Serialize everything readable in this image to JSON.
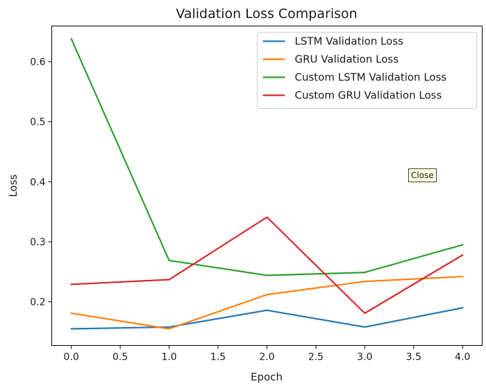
{
  "chart_data": {
    "type": "line",
    "title": "Validation Loss Comparison",
    "xlabel": "Epoch",
    "ylabel": "Loss",
    "x": [
      0,
      1,
      2,
      3,
      4
    ],
    "xlim": [
      -0.2,
      4.2
    ],
    "ylim": [
      0.1273,
      0.6595
    ],
    "x_ticks": [
      "0.0",
      "0.5",
      "1.0",
      "1.5",
      "2.0",
      "2.5",
      "3.0",
      "3.5",
      "4.0"
    ],
    "y_ticks": [
      "0.2",
      "0.3",
      "0.4",
      "0.5",
      "0.6"
    ],
    "grid": false,
    "legend_position": "upper-right",
    "series": [
      {
        "name": "LSTM Validation Loss",
        "color": "#1f77b4",
        "values": [
          0.155,
          0.158,
          0.186,
          0.158,
          0.19
        ]
      },
      {
        "name": "GRU Validation Loss",
        "color": "#ff7f0e",
        "values": [
          0.181,
          0.155,
          0.212,
          0.234,
          0.242
        ]
      },
      {
        "name": "Custom LSTM Validation Loss",
        "color": "#2ca02c",
        "values": [
          0.638,
          0.269,
          0.244,
          0.249,
          0.295
        ]
      },
      {
        "name": "Custom GRU Validation Loss",
        "color": "#d62728",
        "values": [
          0.229,
          0.237,
          0.341,
          0.181,
          0.278
        ]
      }
    ]
  },
  "tooltip": {
    "text": "Close"
  }
}
